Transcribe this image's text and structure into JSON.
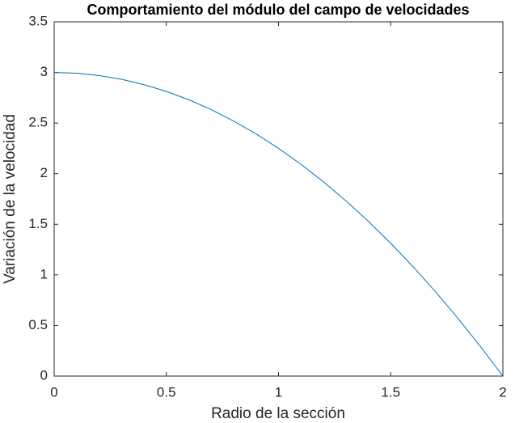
{
  "chart_data": {
    "type": "line",
    "title": "Comportamiento del módulo del campo de velocidades",
    "xlabel": "Radio de la sección",
    "ylabel": "Variación de la velocidad",
    "x": [
      0,
      0.1,
      0.2,
      0.3,
      0.4,
      0.5,
      0.6,
      0.7,
      0.8,
      0.9,
      1.0,
      1.1,
      1.2,
      1.3,
      1.4,
      1.5,
      1.6,
      1.7,
      1.8,
      1.9,
      2.0
    ],
    "series": [
      {
        "color": "#0072bd",
        "values": [
          3,
          2.9925,
          2.97,
          2.9325,
          2.88,
          2.8125,
          2.73,
          2.6325,
          2.52,
          2.3925,
          2.25,
          2.0925,
          1.92,
          1.7325,
          1.53,
          1.3125,
          1.08,
          0.8325,
          0.57,
          0.2925,
          0
        ]
      }
    ],
    "xlim": [
      0,
      2
    ],
    "xticks": [
      0,
      0.5,
      1,
      1.5,
      2
    ],
    "ylim": [
      0,
      3.5
    ],
    "yticks": [
      0,
      0.5,
      1,
      1.5,
      2,
      2.5,
      3,
      3.5
    ],
    "grid": false
  }
}
